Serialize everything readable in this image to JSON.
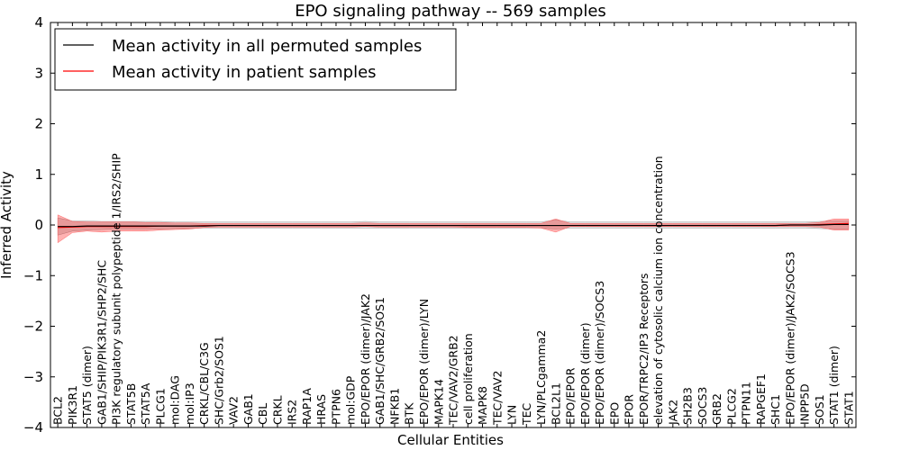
{
  "chart_data": {
    "type": "line",
    "title": "EPO signaling pathway -- 569 samples",
    "xlabel": "Cellular Entities",
    "ylabel": "Inferred Activity",
    "ylim": [
      -4,
      4
    ],
    "yticks": [
      -4,
      -3,
      -2,
      -1,
      0,
      1,
      2,
      3,
      4
    ],
    "ytick_labels": [
      "−4",
      "−3",
      "−2",
      "−1",
      "0",
      "1",
      "2",
      "3",
      "4"
    ],
    "legend": {
      "placement": "top-left",
      "entries": [
        {
          "label": "Mean activity in all permuted samples",
          "color": "#000000"
        },
        {
          "label": "Mean activity in patient samples",
          "color": "#ff0000"
        }
      ]
    },
    "categories": [
      "BCL2",
      "PIK3R1",
      "STAT5 (dimer)",
      "GAB1/SHIP/PIK3R1/SHP2/SHC",
      "PI3K regulatory subunit polypeptide 1/IRS2/SHIP",
      "STAT5B",
      "STAT5A",
      "PLCG1",
      "mol:DAG",
      "mol:IP3",
      "CRKL/CBL/C3G",
      "SHC/Grb2/SOS1",
      "VAV2",
      "GAB1",
      "CBL",
      "CRKL",
      "IRS2",
      "RAP1A",
      "HRAS",
      "PTPN6",
      "mol:GDP",
      "EPO/EPOR (dimer)/JAK2",
      "GAB1/SHC/GRB2/SOS1",
      "NFKB1",
      "BTK",
      "EPO/EPOR (dimer)/LYN",
      "MAPK14",
      "TEC/VAV2/GRB2",
      "cell proliferation",
      "MAPK8",
      "TEC/VAV2",
      "LYN",
      "TEC",
      "LYN/PLCgamma2",
      "BCL2L1",
      "EPO/EPOR",
      "EPO/EPOR (dimer)",
      "EPO/EPOR (dimer)/SOCS3",
      "EPO",
      "EPOR",
      "EPOR/TRPC2/IP3 Receptors",
      "elevation of cytosolic calcium ion concentration",
      "JAK2",
      "SH2B3",
      "SOCS3",
      "GRB2",
      "PLCG2",
      "PTPN11",
      "RAPGEF1",
      "SHC1",
      "EPO/EPOR (dimer)/JAK2/SOCS3",
      "INPP5D",
      "SOS1",
      "STAT1 (dimer)",
      "STAT1"
    ],
    "series": [
      {
        "name": "Mean activity in all permuted samples",
        "color": "#000000",
        "values": [
          -0.03,
          -0.03,
          -0.02,
          -0.02,
          -0.02,
          -0.02,
          -0.02,
          -0.02,
          -0.02,
          -0.02,
          -0.02,
          -0.01,
          -0.01,
          -0.01,
          -0.01,
          -0.01,
          -0.01,
          -0.01,
          -0.01,
          -0.01,
          -0.01,
          -0.01,
          -0.01,
          -0.01,
          -0.01,
          -0.01,
          -0.01,
          -0.01,
          -0.01,
          -0.01,
          -0.01,
          -0.01,
          -0.01,
          -0.01,
          -0.01,
          -0.01,
          -0.01,
          -0.01,
          -0.01,
          -0.01,
          -0.01,
          -0.01,
          -0.01,
          -0.01,
          -0.01,
          -0.01,
          -0.01,
          -0.01,
          -0.01,
          -0.01,
          0.0,
          0.0,
          0.0,
          0.01,
          0.01
        ],
        "band_lower": [
          -0.2,
          -0.12,
          -0.1,
          -0.09,
          -0.08,
          -0.08,
          -0.08,
          -0.08,
          -0.07,
          -0.07,
          -0.06,
          -0.06,
          -0.06,
          -0.06,
          -0.06,
          -0.06,
          -0.06,
          -0.06,
          -0.06,
          -0.06,
          -0.06,
          -0.06,
          -0.06,
          -0.06,
          -0.06,
          -0.06,
          -0.06,
          -0.06,
          -0.06,
          -0.06,
          -0.06,
          -0.06,
          -0.06,
          -0.06,
          -0.08,
          -0.06,
          -0.06,
          -0.06,
          -0.06,
          -0.06,
          -0.06,
          -0.06,
          -0.06,
          -0.06,
          -0.06,
          -0.06,
          -0.06,
          -0.06,
          -0.06,
          -0.06,
          -0.06,
          -0.06,
          -0.07,
          -0.08,
          -0.08
        ],
        "band_upper": [
          0.14,
          0.08,
          0.08,
          0.07,
          0.07,
          0.07,
          0.07,
          0.07,
          0.06,
          0.06,
          0.06,
          0.06,
          0.06,
          0.06,
          0.06,
          0.06,
          0.06,
          0.06,
          0.06,
          0.06,
          0.06,
          0.07,
          0.06,
          0.06,
          0.06,
          0.06,
          0.06,
          0.06,
          0.06,
          0.06,
          0.06,
          0.06,
          0.06,
          0.06,
          0.1,
          0.06,
          0.06,
          0.06,
          0.06,
          0.06,
          0.06,
          0.06,
          0.06,
          0.06,
          0.06,
          0.06,
          0.06,
          0.06,
          0.06,
          0.06,
          0.06,
          0.06,
          0.07,
          0.08,
          0.08
        ]
      },
      {
        "name": "Mean activity in patient samples",
        "color": "#ff0000",
        "values": [
          -0.05,
          -0.04,
          -0.03,
          -0.03,
          -0.03,
          -0.03,
          -0.03,
          -0.02,
          -0.02,
          -0.02,
          -0.01,
          -0.01,
          -0.01,
          -0.01,
          -0.01,
          -0.01,
          -0.01,
          -0.01,
          -0.01,
          -0.01,
          -0.01,
          -0.01,
          -0.01,
          -0.01,
          -0.01,
          -0.01,
          -0.01,
          -0.01,
          -0.01,
          -0.01,
          -0.01,
          -0.01,
          -0.01,
          -0.01,
          -0.01,
          -0.01,
          -0.01,
          -0.01,
          -0.01,
          -0.01,
          -0.01,
          -0.01,
          -0.01,
          -0.01,
          -0.01,
          -0.01,
          -0.01,
          -0.01,
          -0.01,
          -0.01,
          0.0,
          0.0,
          0.01,
          0.02,
          0.03
        ],
        "band_lower": [
          -0.35,
          -0.15,
          -0.12,
          -0.14,
          -0.12,
          -0.12,
          -0.12,
          -0.1,
          -0.09,
          -0.08,
          -0.05,
          -0.04,
          -0.04,
          -0.04,
          -0.04,
          -0.04,
          -0.04,
          -0.04,
          -0.04,
          -0.04,
          -0.04,
          -0.03,
          -0.04,
          -0.04,
          -0.04,
          -0.04,
          -0.04,
          -0.04,
          -0.05,
          -0.05,
          -0.05,
          -0.05,
          -0.05,
          -0.06,
          -0.14,
          -0.03,
          -0.03,
          -0.03,
          -0.03,
          -0.03,
          -0.03,
          -0.03,
          -0.03,
          -0.03,
          -0.03,
          -0.03,
          -0.03,
          -0.03,
          -0.03,
          -0.03,
          -0.03,
          -0.03,
          -0.04,
          -0.1,
          -0.1
        ],
        "band_upper": [
          0.2,
          0.07,
          0.06,
          0.06,
          0.06,
          0.06,
          0.05,
          0.05,
          0.04,
          0.04,
          0.03,
          0.03,
          0.03,
          0.03,
          0.03,
          0.03,
          0.03,
          0.03,
          0.03,
          0.03,
          0.03,
          0.04,
          0.03,
          0.03,
          0.03,
          0.03,
          0.03,
          0.03,
          0.03,
          0.03,
          0.03,
          0.03,
          0.03,
          0.03,
          0.12,
          0.03,
          0.03,
          0.03,
          0.03,
          0.03,
          0.03,
          0.03,
          0.03,
          0.03,
          0.03,
          0.03,
          0.03,
          0.03,
          0.03,
          0.03,
          0.03,
          0.03,
          0.05,
          0.12,
          0.12
        ]
      }
    ]
  }
}
